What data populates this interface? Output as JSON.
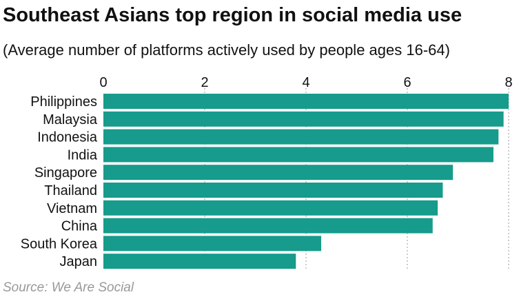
{
  "title": "Southeast Asians top region in social media use",
  "subtitle": "(Average number of platforms actively used by people ages 16-64)",
  "source": "Source: We Are Social",
  "colors": {
    "bar": "#169b8c",
    "grid": "#999999"
  },
  "chart_data": {
    "type": "bar",
    "orientation": "horizontal",
    "categories": [
      "Philippines",
      "Malaysia",
      "Indonesia",
      "India",
      "Singapore",
      "Thailand",
      "Vietnam",
      "China",
      "South Korea",
      "Japan"
    ],
    "values": [
      8.0,
      7.9,
      7.8,
      7.7,
      6.9,
      6.7,
      6.6,
      6.5,
      4.3,
      3.8
    ],
    "xlim": [
      0,
      8
    ],
    "xticks": [
      0,
      2,
      4,
      6,
      8
    ],
    "grid": true,
    "legend": "none"
  }
}
